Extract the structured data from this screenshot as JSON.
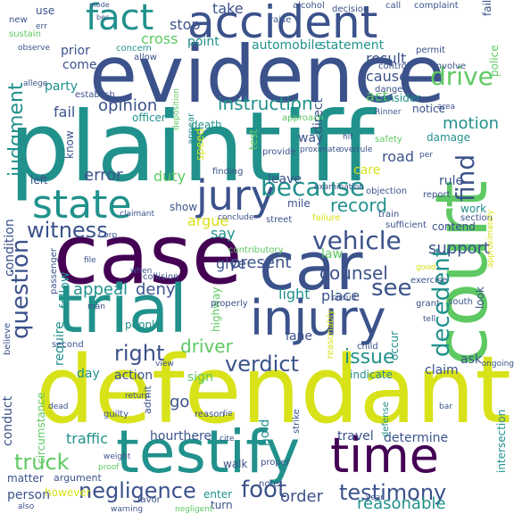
{
  "palette": {
    "dark_purple": "#440154",
    "indigo": "#3b528b",
    "teal": "#21918c",
    "green": "#5ec962",
    "yellow": "#d8e219"
  },
  "words": [
    {
      "text": "defendant",
      "color": "#d8e219"
    },
    {
      "text": "plaintiff",
      "color": "#21918c"
    },
    {
      "text": "evidence",
      "color": "#3b528b"
    },
    {
      "text": "court",
      "color": "#5ec962"
    },
    {
      "text": "case",
      "color": "#440154"
    },
    {
      "text": "trial",
      "color": "#21918c"
    },
    {
      "text": "car",
      "color": "#3b528b"
    },
    {
      "text": "testify",
      "color": "#21918c"
    },
    {
      "text": "accident",
      "color": "#3b528b"
    },
    {
      "text": "injury",
      "color": "#3b528b"
    },
    {
      "text": "time",
      "color": "#440154"
    },
    {
      "text": "jury",
      "color": "#3b528b"
    },
    {
      "text": "state",
      "color": "#21918c"
    },
    {
      "text": "fact",
      "color": "#21918c"
    },
    {
      "text": "vehicle",
      "color": "#3b528b"
    },
    {
      "text": "negligence",
      "color": "#3b528b"
    },
    {
      "text": "testimony",
      "color": "#3b528b"
    },
    {
      "text": "question",
      "color": "#3b528b"
    },
    {
      "text": "decedent",
      "color": "#21918c"
    },
    {
      "text": "judgment",
      "color": "#21918c"
    },
    {
      "text": "because",
      "color": "#21918c"
    },
    {
      "text": "witness",
      "color": "#3b528b"
    },
    {
      "text": "verdict",
      "color": "#3b528b"
    },
    {
      "text": "truck",
      "color": "#5ec962"
    },
    {
      "text": "foot",
      "color": "#3b528b"
    },
    {
      "text": "find",
      "color": "#3b528b"
    },
    {
      "text": "drive",
      "color": "#5ec962"
    },
    {
      "text": "see",
      "color": "#3b528b"
    },
    {
      "text": "issue",
      "color": "#21918c"
    },
    {
      "text": "right",
      "color": "#3b528b"
    },
    {
      "text": "instruction",
      "color": "#21918c"
    },
    {
      "text": "appeal",
      "color": "#21918c"
    },
    {
      "text": "deny",
      "color": "#3b528b"
    },
    {
      "text": "counsel",
      "color": "#3b528b"
    },
    {
      "text": "record",
      "color": "#21918c"
    },
    {
      "text": "present",
      "color": "#3b528b"
    },
    {
      "text": "support",
      "color": "#3b528b"
    },
    {
      "text": "motion",
      "color": "#21918c"
    },
    {
      "text": "driver",
      "color": "#5ec962"
    },
    {
      "text": "traffic",
      "color": "#21918c"
    },
    {
      "text": "reasonable",
      "color": "#21918c"
    },
    {
      "text": "order",
      "color": "#3b528b"
    },
    {
      "text": "error",
      "color": "#3b528b"
    },
    {
      "text": "duty",
      "color": "#5ec962"
    },
    {
      "text": "leave",
      "color": "#3b528b"
    },
    {
      "text": "argue",
      "color": "#d8e219"
    },
    {
      "text": "opinion",
      "color": "#3b528b"
    },
    {
      "text": "fail",
      "color": "#3b528b"
    },
    {
      "text": "stop",
      "color": "#3b528b"
    },
    {
      "text": "take",
      "color": "#3b528b"
    },
    {
      "text": "cross",
      "color": "#5ec962"
    },
    {
      "text": "point",
      "color": "#21918c"
    },
    {
      "text": "automobile",
      "color": "#21918c"
    },
    {
      "text": "statement",
      "color": "#21918c"
    },
    {
      "text": "result",
      "color": "#3b528b"
    },
    {
      "text": "prior",
      "color": "#3b528b"
    },
    {
      "text": "come",
      "color": "#3b528b"
    },
    {
      "text": "party",
      "color": "#21918c"
    },
    {
      "text": "act",
      "color": "#5ec962"
    },
    {
      "text": "cause",
      "color": "#3b528b"
    },
    {
      "text": "consider",
      "color": "#21918c"
    },
    {
      "text": "road",
      "color": "#3b528b"
    },
    {
      "text": "care",
      "color": "#d8e219"
    },
    {
      "text": "direct",
      "color": "#3b528b"
    },
    {
      "text": "way",
      "color": "#3b528b"
    },
    {
      "text": "light",
      "color": "#21918c"
    },
    {
      "text": "place",
      "color": "#3b528b"
    },
    {
      "text": "law",
      "color": "#5ec962"
    },
    {
      "text": "say",
      "color": "#21918c"
    },
    {
      "text": "give",
      "color": "#3b528b"
    },
    {
      "text": "lane",
      "color": "#3b528b"
    },
    {
      "text": "follow",
      "color": "#21918c"
    },
    {
      "text": "require",
      "color": "#21918c"
    },
    {
      "text": "conduct",
      "color": "#3b528b"
    },
    {
      "text": "condition",
      "color": "#3b528b"
    },
    {
      "text": "left",
      "color": "#3b528b"
    },
    {
      "text": "go",
      "color": "#3b528b"
    },
    {
      "text": "hold",
      "color": "#21918c"
    },
    {
      "text": "hour",
      "color": "#3b528b"
    },
    {
      "text": "there",
      "color": "#3b528b"
    },
    {
      "text": "action",
      "color": "#3b528b"
    },
    {
      "text": "day",
      "color": "#21918c"
    },
    {
      "text": "sign",
      "color": "#5ec962"
    },
    {
      "text": "claim",
      "color": "#3b528b"
    },
    {
      "text": "ask",
      "color": "#3b528b"
    },
    {
      "text": "determine",
      "color": "#3b528b"
    },
    {
      "text": "travel",
      "color": "#3b528b"
    },
    {
      "text": "intersection",
      "color": "#21918c"
    },
    {
      "text": "person",
      "color": "#3b528b"
    },
    {
      "text": "matter",
      "color": "#3b528b"
    },
    {
      "text": "contend",
      "color": "#3b528b"
    },
    {
      "text": "work",
      "color": "#21918c"
    },
    {
      "text": "rule",
      "color": "#3b528b"
    },
    {
      "text": "death",
      "color": "#21918c"
    },
    {
      "text": "officer",
      "color": "#21918c"
    },
    {
      "text": "damage",
      "color": "#21918c"
    },
    {
      "text": "know",
      "color": "#3b528b"
    },
    {
      "text": "mile",
      "color": "#3b528b"
    },
    {
      "text": "show",
      "color": "#3b528b"
    },
    {
      "text": "highway",
      "color": "#5ec962"
    },
    {
      "text": "use",
      "color": "#3b528b"
    },
    {
      "text": "however",
      "color": "#d8e219"
    },
    {
      "text": "walk",
      "color": "#3b528b"
    },
    {
      "text": "turn",
      "color": "#3b528b"
    },
    {
      "text": "enter",
      "color": "#21918c"
    },
    {
      "text": "police",
      "color": "#5ec962"
    },
    {
      "text": "speed",
      "color": "#d8e219"
    },
    {
      "text": "test",
      "color": "#5ec962"
    },
    {
      "text": "alcohol",
      "color": "#3b528b"
    },
    {
      "text": "complaint",
      "color": "#3b528b"
    },
    {
      "text": "provide",
      "color": "#3b528b"
    },
    {
      "text": "appear",
      "color": "#21918c"
    },
    {
      "text": "finding",
      "color": "#3b528b"
    },
    {
      "text": "strike",
      "color": "#3b528b"
    },
    {
      "text": "defense",
      "color": "#21918c"
    },
    {
      "text": "indicate",
      "color": "#21918c"
    },
    {
      "text": "occur",
      "color": "#21918c"
    },
    {
      "text": "circumstance",
      "color": "#5ec962"
    },
    {
      "text": "believe",
      "color": "#3b528b"
    },
    {
      "text": "argument",
      "color": "#3b528b"
    },
    {
      "text": "admit",
      "color": "#3b528b"
    },
    {
      "text": "collision",
      "color": "#3b528b"
    },
    {
      "text": "street",
      "color": "#3b528b"
    },
    {
      "text": "control",
      "color": "#3b528b"
    },
    {
      "text": "involve",
      "color": "#3b528b"
    },
    {
      "text": "notice",
      "color": "#3b528b"
    },
    {
      "text": "danger",
      "color": "#3b528b"
    },
    {
      "text": "safety",
      "color": "#5ec962"
    },
    {
      "text": "people",
      "color": "#21918c"
    },
    {
      "text": "reasonably",
      "color": "#d8e219"
    },
    {
      "text": "child",
      "color": "#3b528b"
    },
    {
      "text": "new",
      "color": "#3b528b"
    },
    {
      "text": "sustain",
      "color": "#5ec962"
    },
    {
      "text": "establish",
      "color": "#3b528b"
    },
    {
      "text": "failure",
      "color": "#d8e219"
    },
    {
      "text": "train",
      "color": "#3b528b"
    },
    {
      "text": "sufficient",
      "color": "#3b528b"
    },
    {
      "text": "objection",
      "color": "#3b528b"
    },
    {
      "text": "approach",
      "color": "#5ec962"
    },
    {
      "text": "report",
      "color": "#3b528b"
    },
    {
      "text": "raise",
      "color": "#3b528b"
    },
    {
      "text": "decision",
      "color": "#3b528b"
    },
    {
      "text": "call",
      "color": "#3b528b"
    },
    {
      "text": "concern",
      "color": "#21918c"
    },
    {
      "text": "allow",
      "color": "#3b528b"
    },
    {
      "text": "permit",
      "color": "#3b528b"
    },
    {
      "text": "second",
      "color": "#3b528b"
    },
    {
      "text": "guilty",
      "color": "#3b528b"
    },
    {
      "text": "proper",
      "color": "#3b528b"
    },
    {
      "text": "properly",
      "color": "#3b528b"
    },
    {
      "text": "note",
      "color": "#3b528b"
    },
    {
      "text": "favor",
      "color": "#3b528b"
    },
    {
      "text": "passenger",
      "color": "#3b528b"
    },
    {
      "text": "reason",
      "color": "#3b528b"
    },
    {
      "text": "south",
      "color": "#3b528b"
    },
    {
      "text": "look",
      "color": "#3b528b"
    },
    {
      "text": "grant",
      "color": "#3b528b"
    },
    {
      "text": "section",
      "color": "#3b528b"
    },
    {
      "text": "exercise",
      "color": "#3b528b"
    },
    {
      "text": "contributory",
      "color": "#5ec962"
    },
    {
      "text": "proximate",
      "color": "#3b528b"
    },
    {
      "text": "examination",
      "color": "#3b528b"
    },
    {
      "text": "deposition",
      "color": "#5ec962"
    },
    {
      "text": "area",
      "color": "#3b528b"
    },
    {
      "text": "dead",
      "color": "#3b528b"
    },
    {
      "text": "year",
      "color": "#3b528b"
    },
    {
      "text": "weight",
      "color": "#3b528b"
    },
    {
      "text": "bar",
      "color": "#3b528b"
    },
    {
      "text": "proof",
      "color": "#5ec962"
    },
    {
      "text": "hit",
      "color": "#3b528b"
    },
    {
      "text": "err",
      "color": "#3b528b"
    },
    {
      "text": "view",
      "color": "#3b528b"
    },
    {
      "text": "observe",
      "color": "#3b528b"
    },
    {
      "text": "Corp",
      "color": "#3b528b"
    },
    {
      "text": "file",
      "color": "#3b528b"
    },
    {
      "text": "man",
      "color": "#3b528b"
    },
    {
      "text": "return",
      "color": "#3b528b"
    },
    {
      "text": "cite",
      "color": "#3b528b"
    },
    {
      "text": "negligent",
      "color": "#5ec962"
    },
    {
      "text": "conclude",
      "color": "#3b528b"
    },
    {
      "text": "overrule",
      "color": "#3b528b"
    },
    {
      "text": "circuit",
      "color": "#3b528b"
    },
    {
      "text": "claimant",
      "color": "#3b528b"
    },
    {
      "text": "approximately",
      "color": "#d8e219"
    },
    {
      "text": "Rinner",
      "color": "#3b528b"
    },
    {
      "text": "bec",
      "color": "#3b528b"
    },
    {
      "text": "lie",
      "color": "#3b528b"
    },
    {
      "text": "when",
      "color": "#3b528b"
    },
    {
      "text": "warning",
      "color": "#3b528b"
    },
    {
      "text": "tell",
      "color": "#3b528b"
    },
    {
      "text": "good",
      "color": "#d8e219"
    },
    {
      "text": "ongoing",
      "color": "#3b528b"
    },
    {
      "text": "allege",
      "color": "#3b528b"
    },
    {
      "text": "also",
      "color": "#3b528b"
    },
    {
      "text": "mode",
      "color": "#3b528b"
    },
    {
      "text": "per",
      "color": "#3b528b"
    },
    {
      "text": "fail",
      "color": "#3b528b"
    }
  ]
}
